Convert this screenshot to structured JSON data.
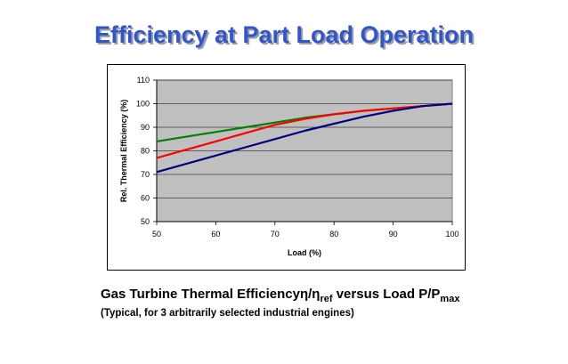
{
  "slide": {
    "title": "Efficiency at Part Load Operation"
  },
  "caption": {
    "main_text": "Gas Turbine Thermal Efficiency",
    "eta": "η",
    "slash": "/",
    "eta2": "η",
    "ref_sub": "ref",
    "versus_text": " versus Load P/P",
    "max_sub": "max",
    "subtitle": "(Typical, for 3 arbitrarily selected industrial engines)"
  },
  "chart_data": {
    "type": "line",
    "xlabel": "Load (%)",
    "ylabel": "Rel. Thermal Efficiency (%)",
    "xlim": [
      50,
      100
    ],
    "ylim": [
      50,
      110
    ],
    "xticks": [
      50,
      60,
      70,
      80,
      90,
      100
    ],
    "yticks": [
      50,
      60,
      70,
      80,
      90,
      100,
      110
    ],
    "grid": "horizontal",
    "plot_background": "#c0c0c0",
    "series": [
      {
        "color": "#008000",
        "x": [
          50,
          55,
          60,
          65,
          70,
          75,
          80,
          85,
          90,
          95,
          100
        ],
        "y": [
          84,
          86,
          88,
          90,
          92,
          94,
          95.5,
          97,
          98,
          99,
          100
        ]
      },
      {
        "color": "#ff0000",
        "x": [
          50,
          55,
          60,
          65,
          70,
          75,
          80,
          85,
          90,
          95,
          100
        ],
        "y": [
          77,
          80.5,
          84,
          87.5,
          91,
          93.5,
          95.5,
          97,
          98,
          99,
          100
        ]
      },
      {
        "color": "#000080",
        "x": [
          50,
          55,
          60,
          65,
          70,
          75,
          80,
          85,
          90,
          95,
          100
        ],
        "y": [
          71,
          74.5,
          78,
          81.5,
          85,
          88.5,
          91.5,
          94.5,
          97,
          99,
          100
        ]
      }
    ]
  }
}
